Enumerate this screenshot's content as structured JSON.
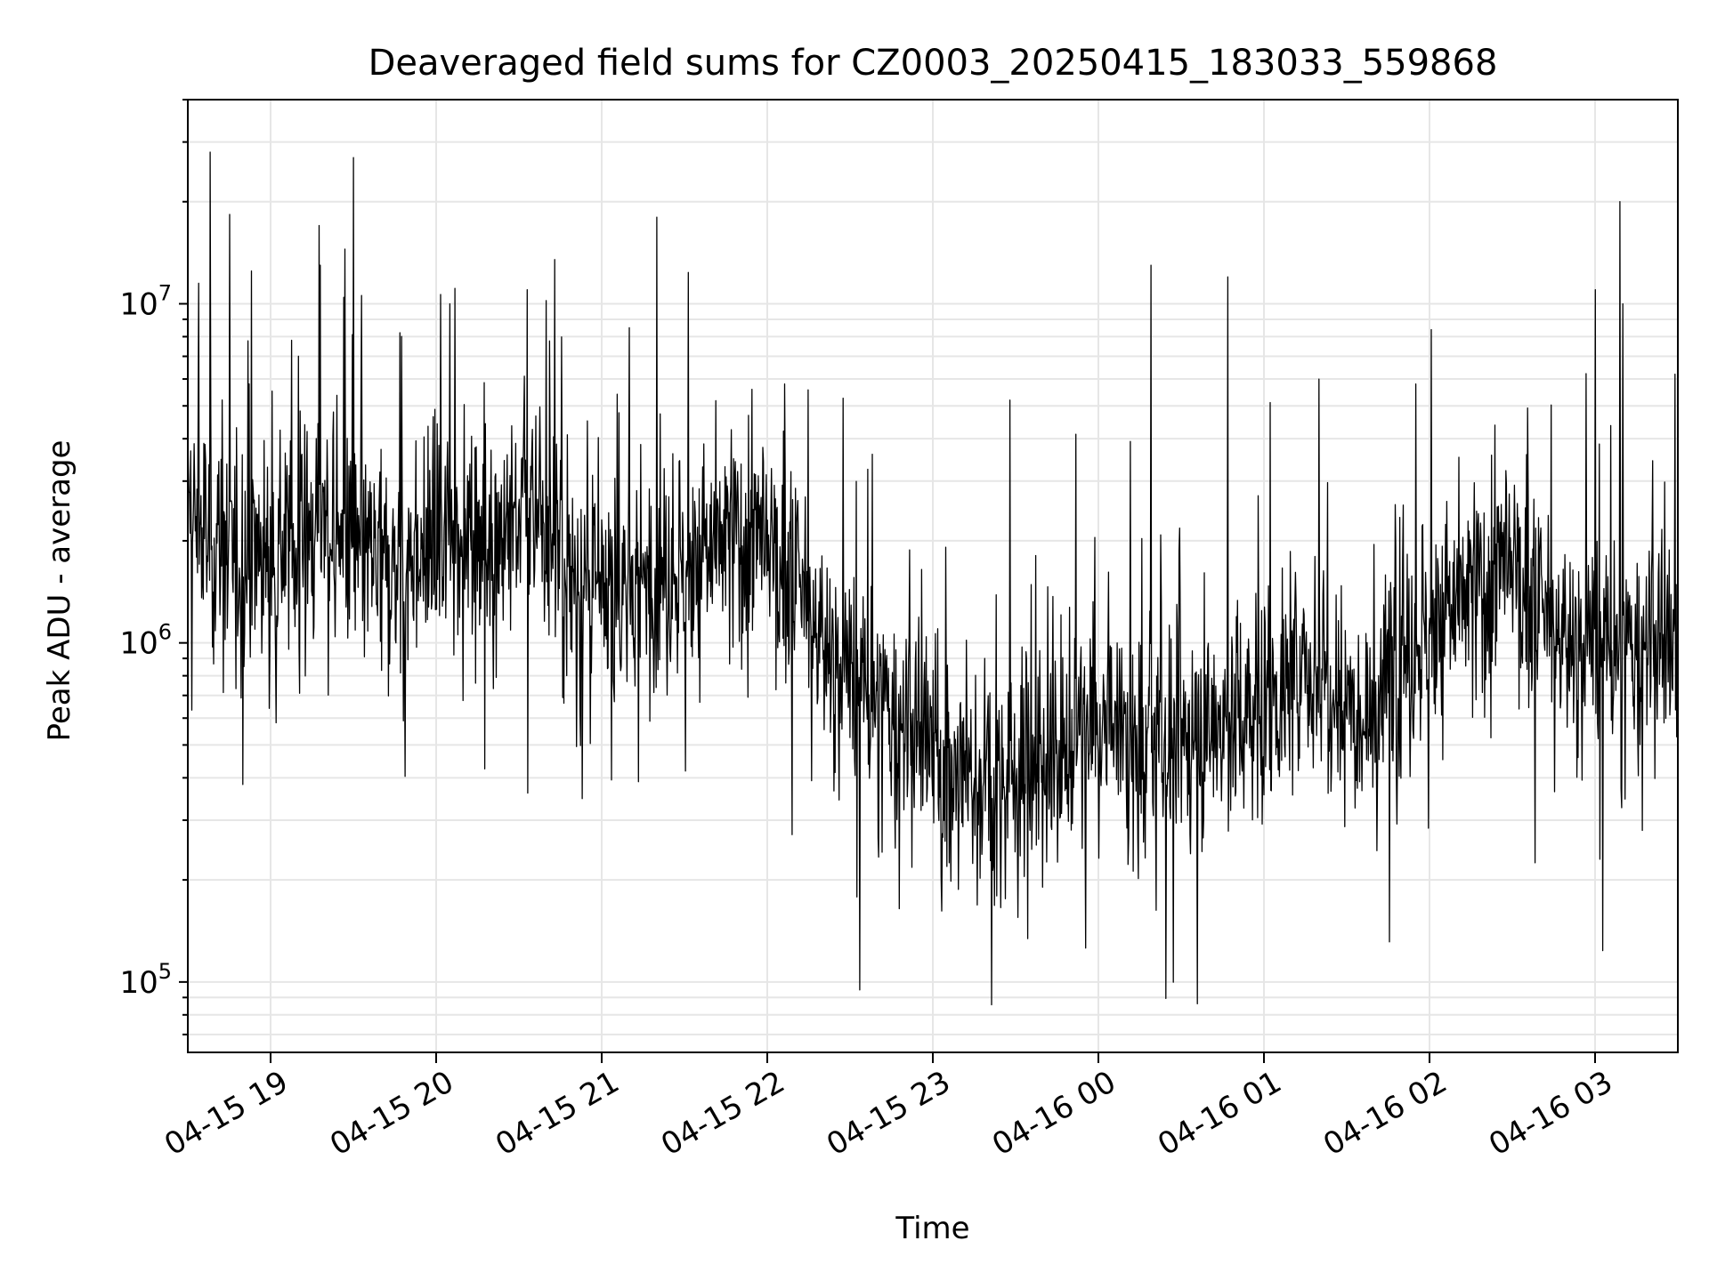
{
  "chart_data": {
    "type": "line",
    "title": "Deaveraged field sums for CZ0003_20250415_183033_559868",
    "xlabel": "Time",
    "ylabel": "Peak ADU - average",
    "yscale": "log",
    "ylim": [
      62000,
      40000000
    ],
    "xlim": [
      "2025-04-15 18:30",
      "2025-04-16 03:30"
    ],
    "grid": true,
    "line_color": "#000000",
    "grid_color": "#e6e6e6",
    "x_ticks": [
      {
        "value": "2025-04-15 19:00",
        "label": "04-15 19"
      },
      {
        "value": "2025-04-15 20:00",
        "label": "04-15 20"
      },
      {
        "value": "2025-04-15 21:00",
        "label": "04-15 21"
      },
      {
        "value": "2025-04-15 22:00",
        "label": "04-15 22"
      },
      {
        "value": "2025-04-15 23:00",
        "label": "04-15 23"
      },
      {
        "value": "2025-04-16 00:00",
        "label": "04-16 00"
      },
      {
        "value": "2025-04-16 01:00",
        "label": "04-16 01"
      },
      {
        "value": "2025-04-16 02:00",
        "label": "04-16 02"
      },
      {
        "value": "2025-04-16 03:00",
        "label": "04-16 03"
      }
    ],
    "y_ticks": [
      {
        "value": 100000,
        "base": "10",
        "exp": "5"
      },
      {
        "value": 1000000,
        "base": "10",
        "exp": "6"
      },
      {
        "value": 10000000,
        "base": "10",
        "exp": "7"
      }
    ],
    "series": [
      {
        "x": [
          "2025-04-15 18:30",
          "2025-04-15 18:40",
          "2025-04-15 18:50",
          "2025-04-15 19:00",
          "2025-04-15 19:10",
          "2025-04-15 19:20",
          "2025-04-15 19:30",
          "2025-04-15 19:40",
          "2025-04-15 19:50",
          "2025-04-15 20:00",
          "2025-04-15 20:10",
          "2025-04-15 20:20",
          "2025-04-15 20:30",
          "2025-04-15 20:40",
          "2025-04-15 20:50",
          "2025-04-15 21:00",
          "2025-04-15 21:10",
          "2025-04-15 21:20",
          "2025-04-15 21:30",
          "2025-04-15 21:40",
          "2025-04-15 21:50",
          "2025-04-15 22:00",
          "2025-04-15 22:10",
          "2025-04-15 22:20",
          "2025-04-15 22:30",
          "2025-04-15 22:40",
          "2025-04-15 22:50",
          "2025-04-15 23:00",
          "2025-04-15 23:10",
          "2025-04-15 23:20",
          "2025-04-15 23:30",
          "2025-04-15 23:40",
          "2025-04-15 23:50",
          "2025-04-16 00:00",
          "2025-04-16 00:10",
          "2025-04-16 00:20",
          "2025-04-16 00:30",
          "2025-04-16 00:40",
          "2025-04-16 00:50",
          "2025-04-16 01:00",
          "2025-04-16 01:10",
          "2025-04-16 01:20",
          "2025-04-16 01:30",
          "2025-04-16 01:40",
          "2025-04-16 01:50",
          "2025-04-16 02:00",
          "2025-04-16 02:10",
          "2025-04-16 02:20",
          "2025-04-16 02:30",
          "2025-04-16 02:40",
          "2025-04-16 02:50",
          "2025-04-16 03:00",
          "2025-04-16 03:10",
          "2025-04-16 03:20",
          "2025-04-16 03:30"
        ],
        "y": [
          2400000,
          1900000,
          1800000,
          2000000,
          2100000,
          2200000,
          1900000,
          1600000,
          1800000,
          1900000,
          2300000,
          2000000,
          2400000,
          2200000,
          1500000,
          1300000,
          1400000,
          1700000,
          1600000,
          1900000,
          2100000,
          1800000,
          1500000,
          1000000,
          800000,
          650000,
          550000,
          480000,
          400000,
          380000,
          420000,
          450000,
          520000,
          550000,
          520000,
          480000,
          500000,
          560000,
          600000,
          650000,
          750000,
          850000,
          700000,
          650000,
          900000,
          1100000,
          1300000,
          1500000,
          1600000,
          1200000,
          1000000,
          1000000,
          900000,
          1000000,
          850000
        ],
        "spikes": [
          {
            "t": "2025-04-15 18:34",
            "y": 11500000
          },
          {
            "t": "2025-04-15 18:38",
            "y": 28000000
          },
          {
            "t": "2025-04-15 18:53",
            "y": 12500000
          },
          {
            "t": "2025-04-15 19:18",
            "y": 13000000
          },
          {
            "t": "2025-04-15 19:27",
            "y": 14500000
          },
          {
            "t": "2025-04-15 19:30",
            "y": 27000000
          },
          {
            "t": "2025-04-15 20:05",
            "y": 10000000
          },
          {
            "t": "2025-04-15 20:33",
            "y": 11000000
          },
          {
            "t": "2025-04-15 20:43",
            "y": 13500000
          },
          {
            "t": "2025-04-15 21:10",
            "y": 8500000
          },
          {
            "t": "2025-04-15 21:20",
            "y": 18000000
          },
          {
            "t": "2025-04-15 22:38",
            "y": 3600000
          },
          {
            "t": "2025-04-15 23:28",
            "y": 5200000
          },
          {
            "t": "2025-04-16 00:19",
            "y": 13000000
          },
          {
            "t": "2025-04-16 00:47",
            "y": 12000000
          },
          {
            "t": "2025-04-16 01:20",
            "y": 6000000
          },
          {
            "t": "2025-04-16 01:55",
            "y": 5800000
          },
          {
            "t": "2025-04-16 03:00",
            "y": 11000000
          },
          {
            "t": "2025-04-16 03:09",
            "y": 20000000
          },
          {
            "t": "2025-04-16 03:10",
            "y": 10000000
          },
          {
            "t": "2025-04-16 03:29",
            "y": 6200000
          }
        ]
      }
    ]
  }
}
